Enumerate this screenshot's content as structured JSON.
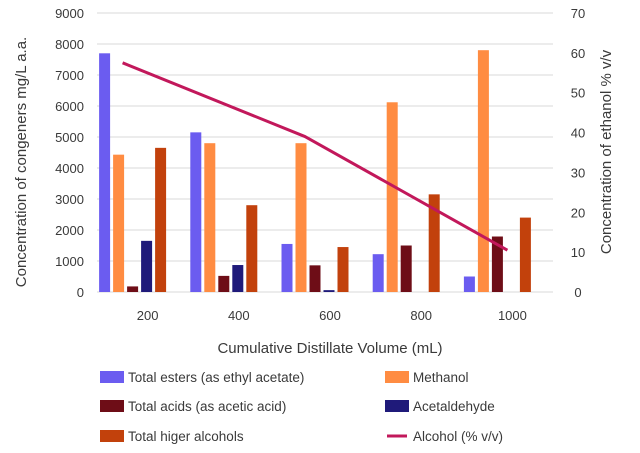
{
  "chart_data": {
    "type": "bar",
    "xlabel": "Cumulative Distillate Volume (mL)",
    "ylabel": "Concentration of congeners mg/L a.a.",
    "y2label": "Concentration of ethanol % v/v",
    "categories": [
      "200",
      "400",
      "600",
      "800",
      "1000"
    ],
    "ylim": [
      0,
      9000
    ],
    "y2lim": [
      0,
      70
    ],
    "yticks": [
      "0",
      "1000",
      "2000",
      "3000",
      "4000",
      "5000",
      "6000",
      "7000",
      "8000",
      "9000"
    ],
    "y2ticks": [
      "0",
      "10",
      "20",
      "30",
      "40",
      "50",
      "60",
      "70"
    ],
    "grid": true,
    "legend_position": "bottom",
    "colors": {
      "esters": "#6b5cf0",
      "methanol": "#ff8c42",
      "acids": "#6e0d17",
      "acetaldehyde": "#1f1a7a",
      "higher_alcohols": "#c2410c",
      "alcohol": "#c2185b",
      "grid": "#d9d9d9",
      "text": "#3a3a3a"
    },
    "series": [
      {
        "name": "Total esters (as ethyl acetate)",
        "key": "esters",
        "type": "bar",
        "axis": "left",
        "values": [
          7700,
          5150,
          1550,
          1220,
          500
        ]
      },
      {
        "name": "Methanol",
        "key": "methanol",
        "type": "bar",
        "axis": "left",
        "values": [
          4430,
          4800,
          4800,
          6120,
          7800
        ]
      },
      {
        "name": "Total acids  (as acetic acid)",
        "key": "acids",
        "type": "bar",
        "axis": "left",
        "values": [
          180,
          520,
          860,
          1500,
          1790
        ]
      },
      {
        "name": "Acetaldehyde",
        "key": "acetaldehyde",
        "type": "bar",
        "axis": "left",
        "values": [
          1650,
          870,
          60,
          0,
          0
        ]
      },
      {
        "name": "Total higer alcohols",
        "key": "higher_alcohols",
        "type": "bar",
        "axis": "left",
        "values": [
          4650,
          2800,
          1450,
          3150,
          2400
        ]
      },
      {
        "name": "Alcohol (% v/v)",
        "key": "alcohol",
        "type": "line",
        "axis": "right",
        "values": [
          57.5,
          null,
          39.0,
          null,
          10.5
        ]
      }
    ]
  }
}
